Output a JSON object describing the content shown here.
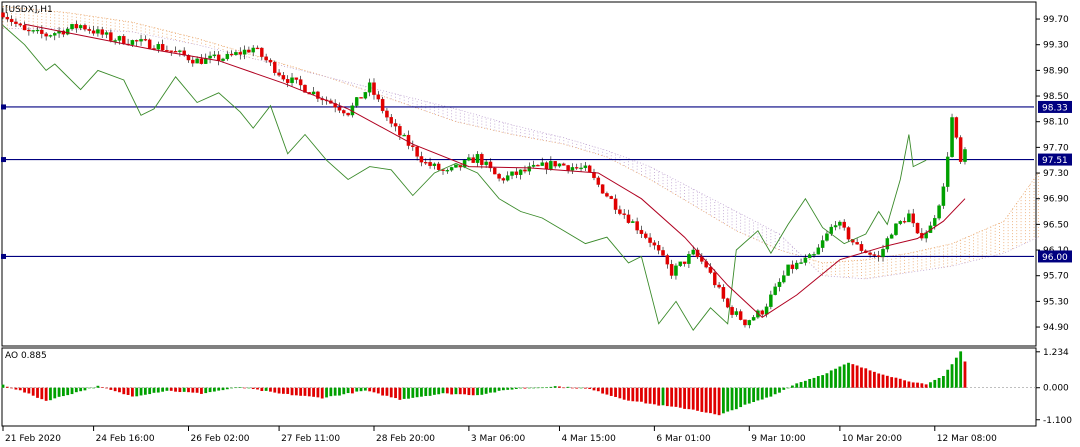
{
  "chart_data": {
    "type": "line",
    "symbol_label": "[USDX],H1",
    "indicator_label": "AO 0.885",
    "colors": {
      "background": "#ffffff",
      "frame": "#000000",
      "level_line": "#000080",
      "bull": "#00a000",
      "bear": "#e00000",
      "ma": "#b00020",
      "chikou": "#3a8a2a",
      "cloud_a": "#e8a060",
      "cloud_b": "#b89acc",
      "ao_up": "#00a000",
      "ao_down": "#e00000"
    },
    "price_axis": {
      "ylim": [
        94.62,
        99.95
      ],
      "ticks": [
        "99.70",
        "99.30",
        "98.90",
        "98.50",
        "98.10",
        "97.70",
        "97.30",
        "96.90",
        "96.50",
        "96.10",
        "95.70",
        "95.30",
        "94.90"
      ]
    },
    "levels": [
      {
        "value": 98.33,
        "label": "98.33"
      },
      {
        "value": 97.51,
        "label": "97.51"
      },
      {
        "value": 96.0,
        "label": "96.00"
      }
    ],
    "ao_axis": {
      "ylim": [
        -1.28,
        1.33
      ],
      "ticks": [
        "1.234",
        "0.000",
        "-1.100"
      ],
      "zero": 0
    },
    "time_axis": {
      "bars": 240,
      "labels": [
        {
          "bar": 0,
          "text": "21 Feb 2020"
        },
        {
          "bar": 21,
          "text": "24 Feb 16:00"
        },
        {
          "bar": 43,
          "text": "26 Feb 02:00"
        },
        {
          "bar": 64,
          "text": "27 Feb 11:00"
        },
        {
          "bar": 86,
          "text": "28 Feb 20:00"
        },
        {
          "bar": 108,
          "text": "3 Mar 06:00"
        },
        {
          "bar": 129,
          "text": "4 Mar 15:00"
        },
        {
          "bar": 151,
          "text": "6 Mar 01:00"
        },
        {
          "bar": 173,
          "text": "9 Mar 10:00"
        },
        {
          "bar": 194,
          "text": "10 Mar 20:00"
        },
        {
          "bar": 216,
          "text": "12 Mar 08:00"
        }
      ]
    },
    "price_path": [
      [
        0,
        99.8
      ],
      [
        5,
        99.5
      ],
      [
        10,
        99.45
      ],
      [
        18,
        99.6
      ],
      [
        25,
        99.4
      ],
      [
        35,
        99.3
      ],
      [
        45,
        99.05
      ],
      [
        52,
        99.1
      ],
      [
        58,
        99.25
      ],
      [
        65,
        98.8
      ],
      [
        72,
        98.55
      ],
      [
        80,
        98.25
      ],
      [
        85,
        98.65
      ],
      [
        90,
        98.05
      ],
      [
        98,
        97.45
      ],
      [
        103,
        97.3
      ],
      [
        110,
        97.55
      ],
      [
        115,
        97.2
      ],
      [
        122,
        97.35
      ],
      [
        128,
        97.45
      ],
      [
        135,
        97.35
      ],
      [
        142,
        96.8
      ],
      [
        150,
        96.25
      ],
      [
        155,
        95.75
      ],
      [
        160,
        96.05
      ],
      [
        163,
        95.85
      ],
      [
        168,
        95.2
      ],
      [
        172,
        94.98
      ],
      [
        176,
        95.15
      ],
      [
        182,
        95.8
      ],
      [
        188,
        96.0
      ],
      [
        193,
        96.55
      ],
      [
        198,
        96.15
      ],
      [
        203,
        95.98
      ],
      [
        206,
        96.4
      ],
      [
        210,
        96.65
      ],
      [
        212,
        96.3
      ],
      [
        215,
        96.45
      ],
      [
        218,
        97.05
      ],
      [
        220,
        98.15
      ],
      [
        222,
        97.45
      ],
      [
        223,
        97.6
      ]
    ],
    "ma_path": [
      [
        5,
        99.62
      ],
      [
        20,
        99.42
      ],
      [
        35,
        99.22
      ],
      [
        50,
        99.05
      ],
      [
        65,
        98.7
      ],
      [
        80,
        98.3
      ],
      [
        95,
        97.75
      ],
      [
        108,
        97.4
      ],
      [
        122,
        97.38
      ],
      [
        138,
        97.3
      ],
      [
        148,
        96.9
      ],
      [
        158,
        96.3
      ],
      [
        168,
        95.55
      ],
      [
        176,
        95.05
      ],
      [
        184,
        95.4
      ],
      [
        194,
        95.95
      ],
      [
        204,
        96.15
      ],
      [
        212,
        96.28
      ],
      [
        218,
        96.55
      ],
      [
        223,
        96.9
      ]
    ],
    "chikou_path": [
      [
        0,
        99.6
      ],
      [
        5,
        99.3
      ],
      [
        10,
        98.9
      ],
      [
        12,
        99.0
      ],
      [
        18,
        98.6
      ],
      [
        22,
        98.9
      ],
      [
        28,
        98.75
      ],
      [
        32,
        98.2
      ],
      [
        35,
        98.3
      ],
      [
        40,
        98.8
      ],
      [
        45,
        98.4
      ],
      [
        50,
        98.55
      ],
      [
        55,
        98.25
      ],
      [
        58,
        98.0
      ],
      [
        62,
        98.35
      ],
      [
        66,
        97.6
      ],
      [
        70,
        97.9
      ],
      [
        75,
        97.5
      ],
      [
        80,
        97.2
      ],
      [
        85,
        97.4
      ],
      [
        90,
        97.35
      ],
      [
        95,
        96.95
      ],
      [
        100,
        97.3
      ],
      [
        105,
        97.45
      ],
      [
        110,
        97.3
      ],
      [
        115,
        96.9
      ],
      [
        120,
        96.7
      ],
      [
        125,
        96.6
      ],
      [
        130,
        96.4
      ],
      [
        135,
        96.2
      ],
      [
        140,
        96.3
      ],
      [
        145,
        95.9
      ],
      [
        148,
        96.0
      ],
      [
        152,
        94.95
      ],
      [
        156,
        95.3
      ],
      [
        160,
        94.85
      ],
      [
        164,
        95.2
      ],
      [
        168,
        94.95
      ],
      [
        170,
        96.1
      ],
      [
        175,
        96.4
      ],
      [
        178,
        96.05
      ],
      [
        182,
        96.5
      ],
      [
        186,
        96.9
      ],
      [
        190,
        96.45
      ],
      [
        195,
        96.2
      ],
      [
        200,
        96.35
      ],
      [
        203,
        96.7
      ],
      [
        205,
        96.5
      ],
      [
        208,
        97.2
      ],
      [
        210,
        97.9
      ],
      [
        211,
        97.4
      ],
      [
        214,
        97.5
      ]
    ],
    "cloud_a_path": [
      [
        0,
        99.9
      ],
      [
        15,
        99.8
      ],
      [
        30,
        99.65
      ],
      [
        45,
        99.4
      ],
      [
        60,
        99.1
      ],
      [
        75,
        98.8
      ],
      [
        90,
        98.45
      ],
      [
        105,
        98.1
      ],
      [
        118,
        97.9
      ],
      [
        130,
        97.75
      ],
      [
        140,
        97.55
      ],
      [
        150,
        97.2
      ],
      [
        160,
        96.8
      ],
      [
        170,
        96.4
      ],
      [
        180,
        96.1
      ],
      [
        190,
        95.9
      ],
      [
        200,
        95.95
      ],
      [
        210,
        96.05
      ],
      [
        220,
        96.2
      ],
      [
        232,
        96.55
      ],
      [
        240,
        97.3
      ]
    ],
    "cloud_b_path": [
      [
        0,
        99.55
      ],
      [
        15,
        99.55
      ],
      [
        30,
        99.5
      ],
      [
        45,
        99.3
      ],
      [
        60,
        99.05
      ],
      [
        75,
        98.8
      ],
      [
        90,
        98.55
      ],
      [
        105,
        98.3
      ],
      [
        118,
        98.05
      ],
      [
        130,
        97.85
      ],
      [
        140,
        97.65
      ],
      [
        150,
        97.4
      ],
      [
        160,
        97.05
      ],
      [
        170,
        96.7
      ],
      [
        180,
        96.35
      ],
      [
        190,
        95.7
      ],
      [
        200,
        95.65
      ],
      [
        210,
        95.75
      ],
      [
        220,
        95.85
      ],
      [
        232,
        96.05
      ],
      [
        240,
        96.3
      ]
    ],
    "ao_path": [
      [
        0,
        0.1
      ],
      [
        4,
        -0.1
      ],
      [
        10,
        -0.45
      ],
      [
        16,
        -0.2
      ],
      [
        22,
        0.05
      ],
      [
        30,
        -0.3
      ],
      [
        38,
        -0.1
      ],
      [
        46,
        -0.2
      ],
      [
        55,
        0.02
      ],
      [
        64,
        -0.2
      ],
      [
        74,
        -0.35
      ],
      [
        84,
        -0.1
      ],
      [
        92,
        -0.4
      ],
      [
        102,
        -0.2
      ],
      [
        110,
        -0.25
      ],
      [
        118,
        -0.05
      ],
      [
        128,
        0.05
      ],
      [
        136,
        -0.05
      ],
      [
        144,
        -0.4
      ],
      [
        152,
        -0.6
      ],
      [
        160,
        -0.75
      ],
      [
        166,
        -0.95
      ],
      [
        172,
        -0.6
      ],
      [
        178,
        -0.3
      ],
      [
        184,
        0.15
      ],
      [
        190,
        0.45
      ],
      [
        196,
        0.85
      ],
      [
        202,
        0.55
      ],
      [
        208,
        0.3
      ],
      [
        214,
        0.1
      ],
      [
        218,
        0.4
      ],
      [
        222,
        1.25
      ],
      [
        223,
        0.9
      ]
    ]
  }
}
